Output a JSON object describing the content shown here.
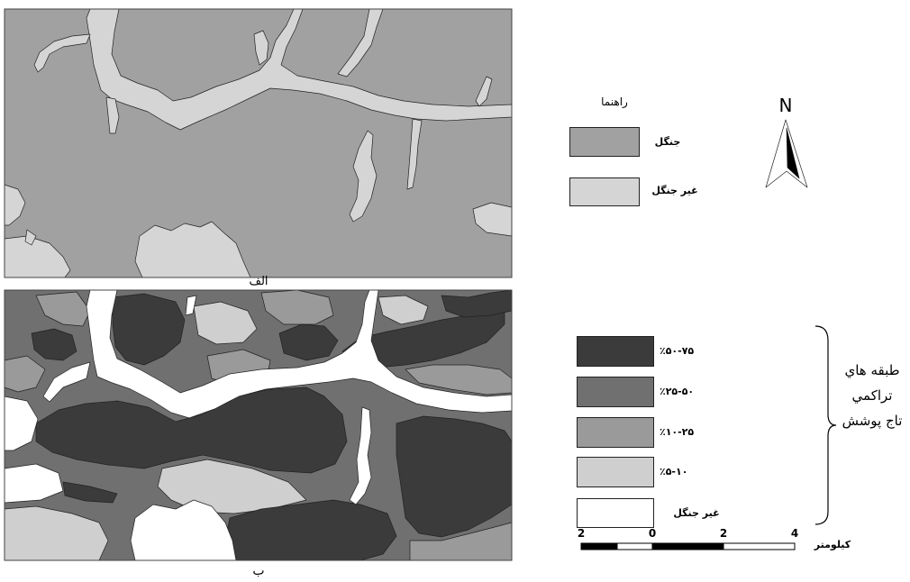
{
  "map_a": {
    "label": "الف"
  },
  "map_b": {
    "label": "ب"
  },
  "legend_a": {
    "title": "راهنما",
    "items": [
      {
        "label": "جنگل",
        "color": "#a1a1a1"
      },
      {
        "label": "غير جنگل",
        "color": "#d5d5d5"
      }
    ]
  },
  "north_arrow": {
    "label": "N"
  },
  "legend_b": {
    "items": [
      {
        "label": "٪۵۰-۷۵",
        "color": "#3b3b3b"
      },
      {
        "label": "٪۲۵-۵۰",
        "color": "#707070"
      },
      {
        "label": "٪۱۰-۲۵",
        "color": "#9a9a9a"
      },
      {
        "label": "٪۵-۱۰",
        "color": "#cfcfcf"
      },
      {
        "label": "غير جنگل",
        "color": "#ffffff"
      }
    ],
    "group_label": [
      "طبقه هاي",
      "تراكمي",
      "تاج پوشش"
    ]
  },
  "scale_bar": {
    "ticks": [
      "2",
      "0",
      "2",
      "4"
    ],
    "unit": "كيلومتر"
  }
}
